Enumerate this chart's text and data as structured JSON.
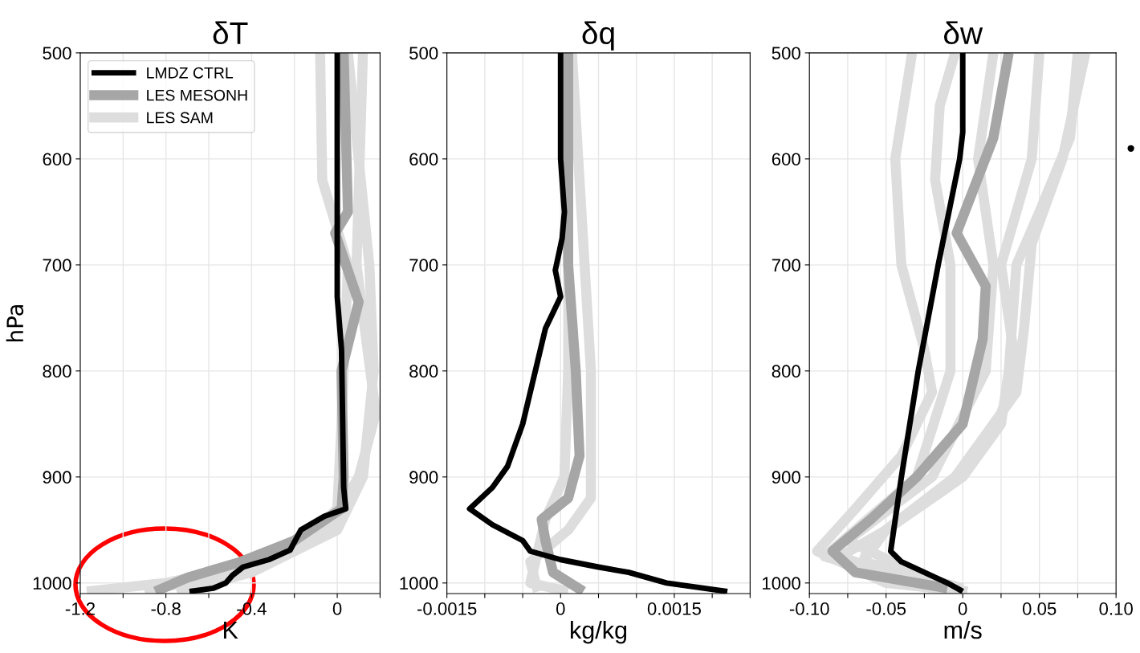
{
  "chart_data": [
    {
      "type": "line",
      "title": "δT",
      "xlabel": "K",
      "ylabel": "hPa",
      "xlim": [
        -1.2,
        0.2
      ],
      "xticks": [
        -1.2,
        {
          "value": -1.0,
          "label": null
        },
        -0.8,
        {
          "value": -0.6,
          "label": null
        },
        -0.4,
        {
          "value": -0.2,
          "label": null
        },
        0,
        {
          "value": 0.2,
          "label": null
        }
      ],
      "ylim": [
        1010,
        500
      ],
      "yticks": [
        500,
        600,
        700,
        800,
        900,
        1000
      ],
      "grid": true,
      "legend": "top left",
      "line_style": "solid",
      "marker": "none",
      "series": [
        {
          "name": "LES SAM",
          "color": "#dddddd",
          "x": [
            0.12,
            0.09,
            0.18,
            0.1,
            -0.05,
            -0.35,
            -0.8,
            -1.17
          ],
          "values": [
            500,
            700,
            840,
            900,
            950,
            980,
            1000,
            1008
          ]
        },
        {
          "color": "#dddddd",
          "x": [
            -0.08,
            -0.07,
            0.05,
            0.02,
            0.0,
            -0.15,
            -0.5,
            -0.9
          ],
          "values": [
            500,
            620,
            700,
            850,
            930,
            960,
            990,
            1008
          ]
        },
        {
          "color": "#dddddd",
          "x": [
            0.05,
            0.15,
            0.17,
            0.12,
            0.0,
            -0.4,
            -0.75
          ],
          "values": [
            500,
            700,
            800,
            900,
            950,
            990,
            1008
          ]
        },
        {
          "name": "LES MESONH",
          "color": "#a6a6a6",
          "x": [
            0.03,
            0.05,
            -0.01,
            0.1,
            0.02,
            0.03,
            0.02,
            -0.2,
            -0.45,
            -0.7,
            -0.85
          ],
          "values": [
            500,
            650,
            670,
            735,
            800,
            900,
            930,
            960,
            980,
            995,
            1008
          ]
        },
        {
          "name": "LMDZ CTRL",
          "color": "#000000",
          "x": [
            0,
            0,
            0.02,
            0.03,
            0.04,
            -0.06,
            -0.17,
            -0.22,
            -0.32,
            -0.44,
            -0.49,
            -0.52,
            -0.58,
            -0.69
          ],
          "values": [
            500,
            730,
            780,
            910,
            930,
            937,
            950,
            969,
            978,
            985,
            993,
            1000,
            1005,
            1008
          ]
        }
      ]
    },
    {
      "type": "line",
      "title": "δq",
      "xlabel": "kg/kg",
      "xlim": [
        -0.0015,
        0.0025
      ],
      "xticks": [
        -0.0015,
        {
          "value": -0.001,
          "label": null
        },
        {
          "value": -0.0005,
          "label": null
        },
        0,
        {
          "value": 0.0005,
          "label": null
        },
        {
          "value": 0.001,
          "label": null
        },
        0.0015,
        {
          "value": 0.002,
          "label": null
        },
        {
          "value": 0.0025,
          "label": null
        }
      ],
      "ylim": [
        1010,
        500
      ],
      "yticks": [
        500,
        600,
        700,
        800,
        900,
        1000
      ],
      "grid": true,
      "line_style": "solid",
      "marker": "none",
      "series": [
        {
          "color": "#dddddd",
          "x": [
            0.00015,
            0.0004,
            0.0004,
            0.0001,
            -0.0004,
            -0.0003
          ],
          "values": [
            500,
            800,
            920,
            950,
            980,
            1008
          ]
        },
        {
          "color": "#dddddd",
          "x": [
            0.0001,
            0.0001,
            5e-05,
            -0.0002,
            -0.0003,
            -0.0004,
            0.0001
          ],
          "values": [
            500,
            800,
            900,
            940,
            970,
            1000,
            1008
          ]
        },
        {
          "color": "#a6a6a6",
          "x": [
            0.0001,
            0.0001,
            0.0002,
            0.00025,
            0.0001,
            -0.00025,
            -0.0002,
            -0.0001,
            0.0003
          ],
          "values": [
            500,
            700,
            800,
            880,
            920,
            940,
            960,
            990,
            1008
          ]
        },
        {
          "color": "#000000",
          "x": [
            0,
            0,
            5e-05,
            2e-05,
            -7e-05,
            0,
            -0.0002,
            -0.0003,
            -0.0005,
            -0.0007,
            -0.0009,
            -0.0012,
            -0.0009,
            -0.0005,
            -0.0004,
            0,
            0.0005,
            0.0009,
            0.0014,
            0.0022
          ],
          "values": [
            500,
            600,
            650,
            675,
            705,
            730,
            760,
            790,
            850,
            890,
            910,
            930,
            945,
            960,
            970,
            978,
            985,
            990,
            1000,
            1008
          ]
        }
      ]
    },
    {
      "type": "line",
      "title": "δw",
      "xlabel": "m/s",
      "xlim": [
        -0.1,
        0.1
      ],
      "xticks": [
        {
          "value": -0.1,
          "label": "-0.10"
        },
        {
          "value": -0.075,
          "label": null
        },
        -0.05,
        {
          "value": -0.025,
          "label": null
        },
        0,
        {
          "value": 0.025,
          "label": null
        },
        0.05,
        {
          "value": 0.075,
          "label": null
        },
        {
          "value": 0.1,
          "label": "0.10"
        }
      ],
      "ylim": [
        1010,
        500
      ],
      "yticks": [
        500,
        600,
        700,
        800,
        900,
        1000
      ],
      "grid": true,
      "line_style": "solid",
      "marker": "none",
      "annotations": [
        "•"
      ],
      "series": [
        {
          "color": "#dddddd",
          "x": [
            -0.033,
            -0.044,
            -0.04,
            -0.025,
            -0.02,
            -0.04,
            -0.07,
            -0.095,
            -0.05,
            0.003
          ],
          "values": [
            500,
            600,
            700,
            780,
            820,
            880,
            930,
            970,
            1000,
            1008
          ]
        },
        {
          "color": "#dddddd",
          "x": [
            0.075,
            0.07,
            0.05,
            0.035,
            0.03,
            0.025,
            0.0,
            -0.05,
            -0.08,
            -0.03,
            0.003
          ],
          "values": [
            500,
            580,
            650,
            700,
            800,
            850,
            900,
            950,
            975,
            1000,
            1008
          ]
        },
        {
          "color": "#dddddd",
          "x": [
            0.05,
            0.045,
            0.025,
            0.035,
            0.02,
            -0.01,
            -0.06,
            -0.065,
            0
          ],
          "values": [
            500,
            600,
            700,
            800,
            860,
            910,
            960,
            980,
            1005
          ]
        },
        {
          "color": "#dddddd",
          "x": [
            -0.005,
            -0.015,
            -0.018,
            -0.008,
            -0.008,
            -0.03,
            -0.07,
            -0.09,
            -0.02
          ],
          "values": [
            500,
            550,
            620,
            700,
            800,
            900,
            950,
            975,
            1005
          ]
        },
        {
          "color": "#dddddd",
          "x": [
            0.02,
            0.01,
            0.02,
            0.015,
            -0.02,
            -0.075,
            -0.01
          ],
          "values": [
            500,
            600,
            700,
            800,
            900,
            960,
            1005
          ]
        },
        {
          "color": "#dddddd",
          "x": [
            0.08,
            0.065,
            0.045,
            0.04,
            0.035,
            -0.005,
            -0.05,
            -0.065,
            0
          ],
          "values": [
            500,
            600,
            680,
            760,
            820,
            900,
            950,
            980,
            1005
          ]
        },
        {
          "color": "#a6a6a6",
          "x": [
            0.03,
            0.02,
            -0.004,
            0.015,
            0.013,
            0.0,
            -0.03,
            -0.06,
            -0.085,
            -0.07,
            -0.01
          ],
          "values": [
            500,
            580,
            670,
            720,
            770,
            850,
            900,
            940,
            970,
            990,
            1005
          ]
        },
        {
          "color": "#000000",
          "x": [
            0,
            0,
            -0.002,
            -0.016,
            -0.029,
            -0.04,
            -0.047,
            -0.04,
            -0.01,
            0
          ],
          "values": [
            500,
            575,
            600,
            700,
            800,
            900,
            970,
            980,
            1000,
            1008
          ]
        }
      ]
    }
  ]
}
